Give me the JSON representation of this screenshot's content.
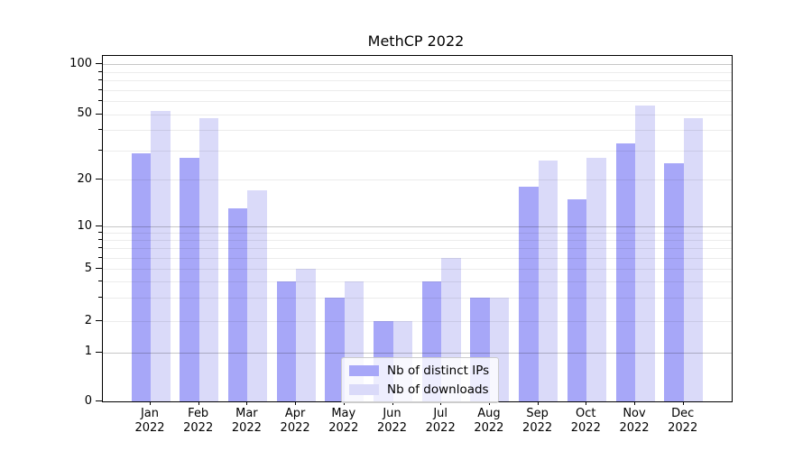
{
  "title": "MethCP 2022",
  "chart_data": {
    "type": "bar",
    "title": "MethCP 2022",
    "categories": [
      "Jan 2022",
      "Feb 2022",
      "Mar 2022",
      "Apr 2022",
      "May 2022",
      "Jun 2022",
      "Jul 2022",
      "Aug 2022",
      "Sep 2022",
      "Oct 2022",
      "Nov 2022",
      "Dec 2022"
    ],
    "series": [
      {
        "name": "Nb of distinct IPs",
        "color": "#a7a7f8",
        "values": [
          29,
          27,
          13,
          4,
          3,
          2,
          4,
          3,
          18,
          15,
          33,
          25
        ]
      },
      {
        "name": "Nb of downloads",
        "color": "#dadaf9",
        "values": [
          52,
          47,
          17,
          5,
          4,
          2,
          6,
          3,
          26,
          27,
          56,
          47
        ]
      }
    ],
    "xlabel": "",
    "ylabel": "",
    "yscale": "symlog",
    "ytick_labels": [
      "0",
      "1",
      "2",
      "5",
      "10",
      "20",
      "50",
      "100"
    ],
    "ytick_values": [
      0,
      1,
      2,
      5,
      10,
      20,
      50,
      100
    ],
    "ylim": [
      0,
      112
    ],
    "grid": "both, horizontal only",
    "legend_position": "lower center (inside plot)"
  },
  "legend": {
    "items": [
      {
        "label": "Nb of distinct IPs",
        "color": "#a7a7f8"
      },
      {
        "label": "Nb of downloads",
        "color": "#dadaf9"
      }
    ]
  },
  "colors": {
    "series1": "#a7a7f8",
    "series2": "#dadaf9",
    "axis": "#000000",
    "grid_minor": "#ececec",
    "grid_major": "#c4c4c4",
    "background": "#ffffff"
  }
}
